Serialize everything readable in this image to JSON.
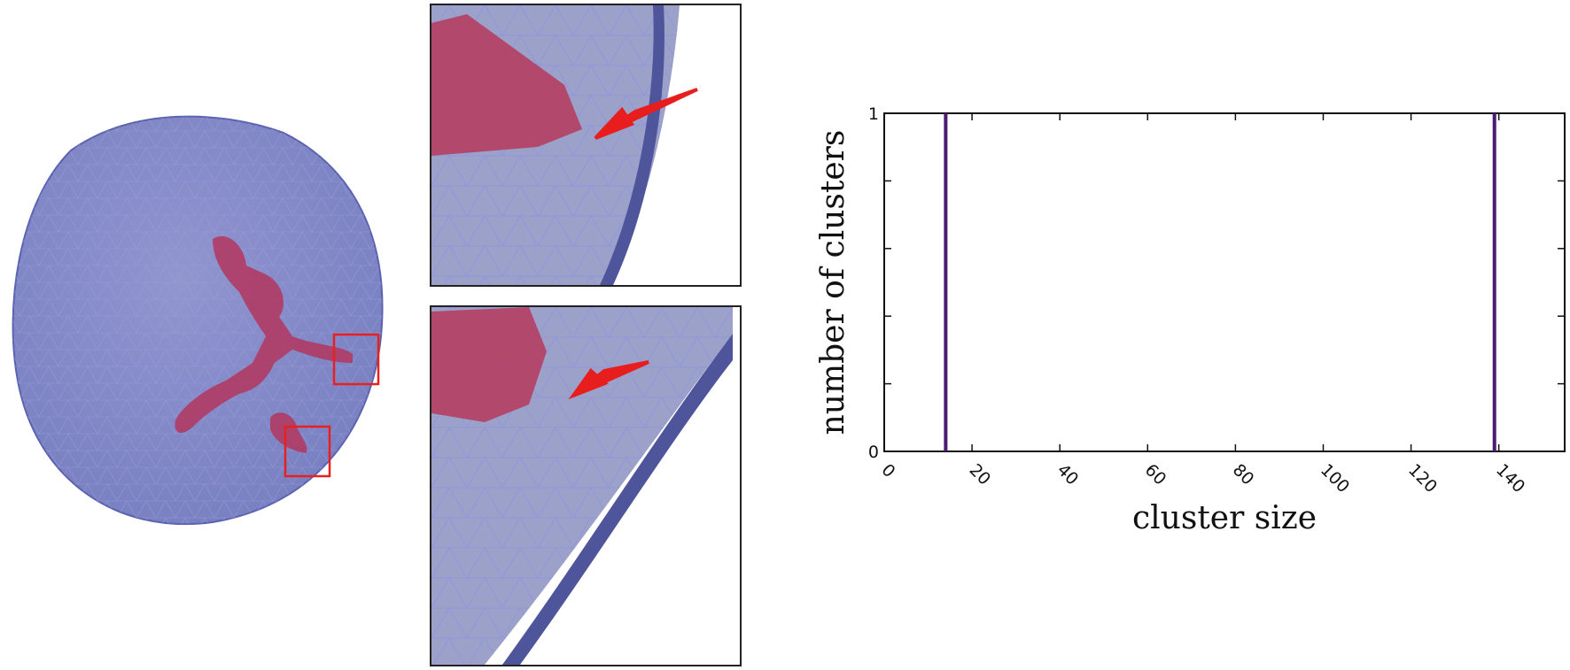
{
  "chart_data": {
    "type": "bar",
    "xlabel": "cluster size",
    "ylabel": "number of clusters",
    "xlim": [
      0,
      155
    ],
    "ylim": [
      0,
      1
    ],
    "xticks": [
      0,
      20,
      40,
      60,
      80,
      100,
      120,
      140
    ],
    "yticks": [
      0,
      1
    ],
    "x": [
      14,
      139
    ],
    "values": [
      1,
      1
    ],
    "grid": false,
    "colors": {
      "bars": "#4b1a73",
      "axes": "#111111"
    }
  },
  "images": {
    "sphere": {
      "icon": "meshed-sphere-icon",
      "mesh_color": "#7f86c8",
      "cluster_color": "#b3365e",
      "highlight_color": "#e82020"
    },
    "zoom_top": {
      "icon": "zoomed-neck-icon"
    },
    "zoom_bottom": {
      "icon": "zoomed-neck-icon"
    }
  }
}
